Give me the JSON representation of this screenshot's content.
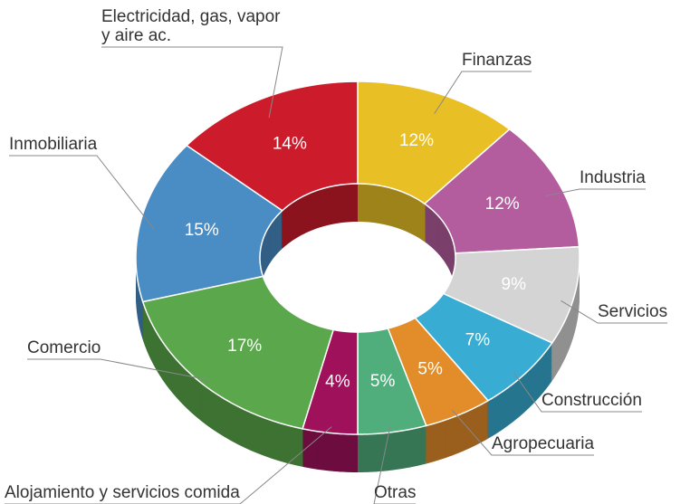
{
  "chart_data": {
    "type": "pie",
    "donut": true,
    "categories": [
      "Finanzas",
      "Industria",
      "Servicios",
      "Construcción",
      "Agropecuaria",
      "Otras",
      "Alojamiento y servicios comida",
      "Comercio",
      "Inmobiliaria",
      "Electricidad, gas, vapor y aire ac."
    ],
    "values": [
      12,
      12,
      9,
      7,
      5,
      5,
      4,
      17,
      15,
      14
    ],
    "value_labels": [
      "12%",
      "12%",
      "9%",
      "7%",
      "5%",
      "5%",
      "4%",
      "17%",
      "15%",
      "14%"
    ],
    "colors": [
      "#e9bf26",
      "#b35d9e",
      "#d4d4d4",
      "#38acd2",
      "#e38c2a",
      "#50ae7c",
      "#a0115b",
      "#5aa84b",
      "#4a8cc4",
      "#cc1c2b"
    ]
  }
}
